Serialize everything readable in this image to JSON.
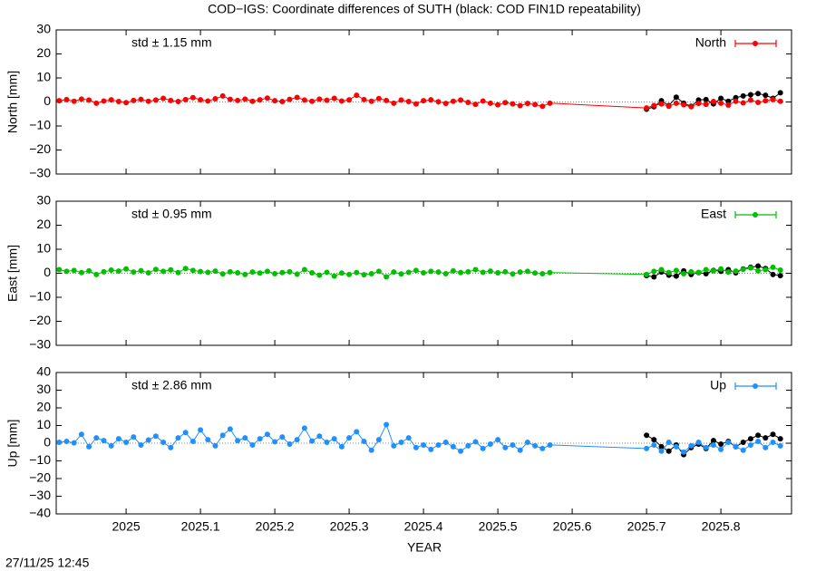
{
  "chart_data": [
    {
      "type": "line",
      "title": "COD−IGS: Coordinate differences of SUTH (black: COD FIN1D repeatability)",
      "y_label": "North [mm]",
      "annotation": "std ± 1.15 mm",
      "x": [
        2024.91,
        2024.92,
        2024.93,
        2024.94,
        2024.95,
        2024.96,
        2024.97,
        2024.98,
        2024.99,
        2025,
        2025.01,
        2025.02,
        2025.03,
        2025.04,
        2025.05,
        2025.06,
        2025.07,
        2025.08,
        2025.09,
        2025.1,
        2025.11,
        2025.12,
        2025.13,
        2025.14,
        2025.15,
        2025.16,
        2025.17,
        2025.18,
        2025.19,
        2025.2,
        2025.21,
        2025.22,
        2025.23,
        2025.24,
        2025.25,
        2025.26,
        2025.27,
        2025.28,
        2025.29,
        2025.3,
        2025.31,
        2025.32,
        2025.33,
        2025.34,
        2025.35,
        2025.36,
        2025.37,
        2025.38,
        2025.39,
        2025.4,
        2025.41,
        2025.42,
        2025.43,
        2025.44,
        2025.45,
        2025.46,
        2025.47,
        2025.48,
        2025.49,
        2025.5,
        2025.51,
        2025.52,
        2025.53,
        2025.54,
        2025.55,
        2025.56,
        2025.57,
        2025.7,
        2025.71,
        2025.72,
        2025.73,
        2025.74,
        2025.75,
        2025.76,
        2025.77,
        2025.78,
        2025.79,
        2025.8,
        2025.81,
        2025.82,
        2025.83,
        2025.84,
        2025.85,
        2025.86,
        2025.87,
        2025.88
      ],
      "series": [
        {
          "color": "#000000",
          "values": [
            null,
            null,
            null,
            null,
            null,
            null,
            null,
            null,
            null,
            null,
            null,
            null,
            null,
            null,
            null,
            null,
            null,
            null,
            null,
            null,
            null,
            null,
            null,
            null,
            null,
            null,
            null,
            null,
            null,
            null,
            null,
            null,
            null,
            null,
            null,
            null,
            null,
            null,
            null,
            null,
            null,
            null,
            null,
            null,
            null,
            null,
            null,
            null,
            null,
            null,
            null,
            null,
            null,
            null,
            null,
            null,
            null,
            null,
            null,
            null,
            null,
            null,
            null,
            null,
            null,
            null,
            null,
            -3.0,
            -2.0,
            0.5,
            -1.5,
            2.0,
            -0.5,
            -1.8,
            0.8,
            1.0,
            -0.8,
            1.5,
            0.3,
            1.8,
            2.5,
            3.0,
            3.5,
            2.8,
            1.5,
            3.8
          ]
        },
        {
          "name": "North",
          "color": "#ff0000",
          "values": [
            0.5,
            1.0,
            0.3,
            1.2,
            0.8,
            -0.5,
            0.4,
            0.9,
            0.2,
            -0.3,
            0.6,
            1.1,
            0.3,
            0.8,
            1.5,
            0.6,
            0.2,
            1.0,
            1.8,
            0.9,
            0.4,
            1.3,
            2.5,
            1.1,
            0.6,
            1.2,
            0.3,
            0.9,
            1.6,
            0.5,
            0.2,
            1.1,
            1.9,
            0.8,
            0.3,
            1.2,
            0.7,
            1.5,
            0.4,
            0.9,
            2.8,
            1.0,
            0.3,
            1.4,
            0.6,
            -0.5,
            0.8,
            0.2,
            -0.8,
            0.5,
            0.9,
            0.1,
            -0.6,
            0.3,
            0.8,
            -0.2,
            -1.0,
            0.4,
            -0.5,
            -1.2,
            -0.3,
            -0.8,
            -1.5,
            -0.6,
            -1.1,
            -1.8,
            -0.5,
            -2.5,
            -1.5,
            -0.8,
            -1.8,
            -0.5,
            -1.2,
            -2.0,
            -0.6,
            -1.0,
            0.2,
            -0.5,
            -1.3,
            0.3,
            -0.4,
            0.8,
            -0.2,
            0.5,
            1.0,
            0.3
          ]
        }
      ],
      "xlim": [
        2024.906,
        2025.895
      ],
      "xticks": [
        2025,
        2025.1,
        2025.2,
        2025.3,
        2025.4,
        2025.5,
        2025.6,
        2025.7,
        2025.8
      ],
      "ylim": [
        -30,
        30
      ],
      "yticks": [
        {
          "value": -30,
          "label": "−30"
        },
        {
          "value": -20,
          "label": "−20"
        },
        {
          "value": -10,
          "label": "−10"
        },
        0,
        10,
        20,
        30
      ]
    },
    {
      "type": "line",
      "y_label": "East [mm]",
      "annotation": "std ± 0.95 mm",
      "x": [
        2024.91,
        2024.92,
        2024.93,
        2024.94,
        2024.95,
        2024.96,
        2024.97,
        2024.98,
        2024.99,
        2025,
        2025.01,
        2025.02,
        2025.03,
        2025.04,
        2025.05,
        2025.06,
        2025.07,
        2025.08,
        2025.09,
        2025.1,
        2025.11,
        2025.12,
        2025.13,
        2025.14,
        2025.15,
        2025.16,
        2025.17,
        2025.18,
        2025.19,
        2025.2,
        2025.21,
        2025.22,
        2025.23,
        2025.24,
        2025.25,
        2025.26,
        2025.27,
        2025.28,
        2025.29,
        2025.3,
        2025.31,
        2025.32,
        2025.33,
        2025.34,
        2025.35,
        2025.36,
        2025.37,
        2025.38,
        2025.39,
        2025.4,
        2025.41,
        2025.42,
        2025.43,
        2025.44,
        2025.45,
        2025.46,
        2025.47,
        2025.48,
        2025.49,
        2025.5,
        2025.51,
        2025.52,
        2025.53,
        2025.54,
        2025.55,
        2025.56,
        2025.57,
        2025.7,
        2025.71,
        2025.72,
        2025.73,
        2025.74,
        2025.75,
        2025.76,
        2025.77,
        2025.78,
        2025.79,
        2025.8,
        2025.81,
        2025.82,
        2025.83,
        2025.84,
        2025.85,
        2025.86,
        2025.87,
        2025.88
      ],
      "series": [
        {
          "color": "#000000",
          "values": [
            null,
            null,
            null,
            null,
            null,
            null,
            null,
            null,
            null,
            null,
            null,
            null,
            null,
            null,
            null,
            null,
            null,
            null,
            null,
            null,
            null,
            null,
            null,
            null,
            null,
            null,
            null,
            null,
            null,
            null,
            null,
            null,
            null,
            null,
            null,
            null,
            null,
            null,
            null,
            null,
            null,
            null,
            null,
            null,
            null,
            null,
            null,
            null,
            null,
            null,
            null,
            null,
            null,
            null,
            null,
            null,
            null,
            null,
            null,
            null,
            null,
            null,
            null,
            null,
            null,
            null,
            null,
            -1.0,
            -1.5,
            0.5,
            -0.8,
            -1.2,
            1.0,
            -0.5,
            0.3,
            -0.2,
            1.2,
            0.8,
            1.5,
            0.2,
            1.8,
            2.5,
            3.0,
            2.0,
            -0.5,
            -1.0
          ]
        },
        {
          "name": "East",
          "color": "#00c000",
          "values": [
            1.5,
            0.8,
            1.2,
            0.3,
            1.0,
            -0.5,
            0.6,
            1.3,
            0.9,
            1.8,
            0.5,
            1.1,
            0.2,
            1.6,
            0.8,
            1.4,
            0.3,
            2.0,
            1.2,
            0.7,
            0.4,
            0.9,
            -0.3,
            0.6,
            0.2,
            -0.5,
            0.5,
            0.1,
            0.8,
            -0.2,
            0.3,
            0.6,
            -0.4,
            1.5,
            0.2,
            -0.8,
            0.4,
            -1.2,
            0.1,
            -0.5,
            0.3,
            -0.6,
            -0.2,
            0.8,
            -1.5,
            0.5,
            -0.3,
            0.4,
            1.2,
            0.2,
            0.8,
            0.5,
            -0.2,
            1.0,
            0.3,
            0.6,
            1.5,
            0.4,
            0.9,
            0.2,
            0.6,
            -0.3,
            0.5,
            0.8,
            0.1,
            -0.2,
            0.3,
            -0.5,
            0.8,
            1.5,
            0.3,
            1.2,
            -0.2,
            0.6,
            0.4,
            1.5,
            1.0,
            1.8,
            0.5,
            0.9,
            1.6,
            2.2,
            1.0,
            1.5,
            2.5,
            1.3
          ]
        }
      ],
      "xlim": [
        2024.906,
        2025.895
      ],
      "xticks": [
        2025,
        2025.1,
        2025.2,
        2025.3,
        2025.4,
        2025.5,
        2025.6,
        2025.7,
        2025.8
      ],
      "ylim": [
        -30,
        30
      ],
      "yticks": [
        {
          "value": -30,
          "label": "−30"
        },
        {
          "value": -20,
          "label": "−20"
        },
        {
          "value": -10,
          "label": "−10"
        },
        0,
        10,
        20,
        30
      ]
    },
    {
      "type": "line",
      "y_label": "Up [mm]",
      "annotation": "std ± 2.86 mm",
      "x_label": "YEAR",
      "timestamp": "27/11/25 12:45",
      "x": [
        2024.91,
        2024.92,
        2024.93,
        2024.94,
        2024.95,
        2024.96,
        2024.97,
        2024.98,
        2024.99,
        2025,
        2025.01,
        2025.02,
        2025.03,
        2025.04,
        2025.05,
        2025.06,
        2025.07,
        2025.08,
        2025.09,
        2025.1,
        2025.11,
        2025.12,
        2025.13,
        2025.14,
        2025.15,
        2025.16,
        2025.17,
        2025.18,
        2025.19,
        2025.2,
        2025.21,
        2025.22,
        2025.23,
        2025.24,
        2025.25,
        2025.26,
        2025.27,
        2025.28,
        2025.29,
        2025.3,
        2025.31,
        2025.32,
        2025.33,
        2025.34,
        2025.35,
        2025.36,
        2025.37,
        2025.38,
        2025.39,
        2025.4,
        2025.41,
        2025.42,
        2025.43,
        2025.44,
        2025.45,
        2025.46,
        2025.47,
        2025.48,
        2025.49,
        2025.5,
        2025.51,
        2025.52,
        2025.53,
        2025.54,
        2025.55,
        2025.56,
        2025.57,
        2025.7,
        2025.71,
        2025.72,
        2025.73,
        2025.74,
        2025.75,
        2025.76,
        2025.77,
        2025.78,
        2025.79,
        2025.8,
        2025.81,
        2025.82,
        2025.83,
        2025.84,
        2025.85,
        2025.86,
        2025.87,
        2025.88
      ],
      "series": [
        {
          "color": "#000000",
          "values": [
            null,
            null,
            null,
            null,
            null,
            null,
            null,
            null,
            null,
            null,
            null,
            null,
            null,
            null,
            null,
            null,
            null,
            null,
            null,
            null,
            null,
            null,
            null,
            null,
            null,
            null,
            null,
            null,
            null,
            null,
            null,
            null,
            null,
            null,
            null,
            null,
            null,
            null,
            null,
            null,
            null,
            null,
            null,
            null,
            null,
            null,
            null,
            null,
            null,
            null,
            null,
            null,
            null,
            null,
            null,
            null,
            null,
            null,
            null,
            null,
            null,
            null,
            null,
            null,
            null,
            null,
            null,
            4.5,
            2.0,
            -2.0,
            -4.5,
            -1.0,
            -6.5,
            -2.5,
            -0.5,
            -3.0,
            1.5,
            -0.5,
            1.0,
            -2.0,
            0.5,
            2.5,
            4.5,
            3.0,
            5.0,
            2.5
          ]
        },
        {
          "name": "Up",
          "color": "#1e90ff",
          "values": [
            0.5,
            1.0,
            0.2,
            5.0,
            -2.0,
            3.0,
            1.5,
            -1.5,
            2.5,
            0.5,
            3.5,
            -1.0,
            1.8,
            4.0,
            0.5,
            -2.5,
            3.0,
            6.0,
            1.0,
            7.5,
            2.0,
            -1.5,
            4.5,
            8.0,
            1.5,
            3.0,
            -1.0,
            2.5,
            5.0,
            0.8,
            3.5,
            -0.5,
            2.0,
            8.5,
            1.2,
            4.0,
            0.5,
            2.5,
            -2.0,
            3.0,
            6.5,
            1.0,
            -4.0,
            2.0,
            10.5,
            -1.5,
            0.5,
            3.0,
            -2.5,
            -1.0,
            -3.5,
            -1.0,
            0.5,
            -2.0,
            -4.5,
            -1.5,
            0.8,
            -3.0,
            -0.5,
            2.0,
            -2.5,
            -1.0,
            -4.0,
            0.5,
            -1.5,
            -3.0,
            -1.0,
            -3.0,
            -1.0,
            -4.5,
            0.5,
            -2.0,
            -5.0,
            -1.5,
            0.5,
            -2.5,
            -1.0,
            -3.5,
            0.5,
            -2.0,
            -4.0,
            -1.0,
            1.0,
            -2.5,
            0.5,
            -1.5
          ]
        }
      ],
      "xlim": [
        2024.906,
        2025.895
      ],
      "xticks": [
        2025,
        2025.1,
        2025.2,
        2025.3,
        2025.4,
        2025.5,
        2025.6,
        2025.7,
        2025.8
      ],
      "ylim": [
        -40,
        40
      ],
      "yticks": [
        {
          "value": -40,
          "label": "−40"
        },
        {
          "value": -30,
          "label": "−30"
        },
        {
          "value": -20,
          "label": "−20"
        },
        {
          "value": -10,
          "label": "−10"
        },
        0,
        10,
        20,
        30,
        40
      ]
    }
  ]
}
